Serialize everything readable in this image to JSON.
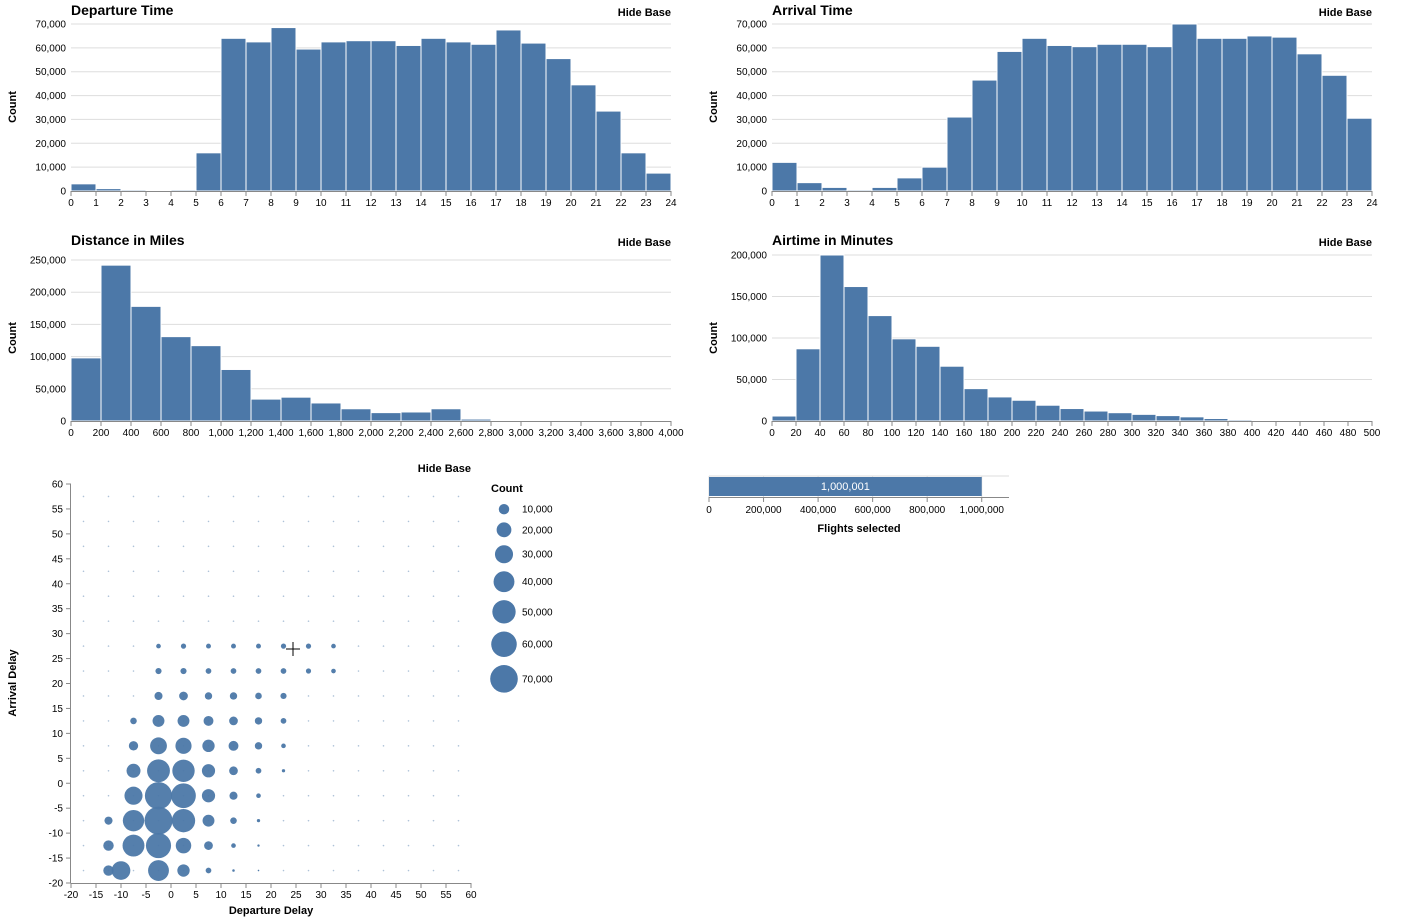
{
  "colors": {
    "bar": "#4c78a8",
    "grid": "#dddddd",
    "axis": "#888888"
  },
  "hide_base_label": "Hide Base",
  "chart_data": [
    {
      "id": "departure",
      "type": "bar",
      "title": "Departure Time",
      "ylabel": "Count",
      "xlabel": "",
      "x_domain": [
        0,
        24
      ],
      "x_ticks": [
        0,
        1,
        2,
        3,
        4,
        5,
        6,
        7,
        8,
        9,
        10,
        11,
        12,
        13,
        14,
        15,
        16,
        17,
        18,
        19,
        20,
        21,
        22,
        23,
        24
      ],
      "y_domain": [
        0,
        70000
      ],
      "y_ticks": [
        0,
        10000,
        20000,
        30000,
        40000,
        50000,
        60000,
        70000
      ],
      "bin_step": 1,
      "bins": [
        0,
        1,
        2,
        3,
        4,
        5,
        6,
        7,
        8,
        9,
        10,
        11,
        12,
        13,
        14,
        15,
        16,
        17,
        18,
        19,
        20,
        21,
        22,
        23
      ],
      "values": [
        3000,
        1000,
        500,
        300,
        500,
        16000,
        64000,
        62500,
        68500,
        59500,
        62500,
        63000,
        63000,
        61000,
        64000,
        62500,
        61500,
        67500,
        62000,
        55500,
        44500,
        33500,
        16000,
        7500
      ]
    },
    {
      "id": "arrival",
      "type": "bar",
      "title": "Arrival Time",
      "ylabel": "Count",
      "xlabel": "",
      "x_domain": [
        0,
        24
      ],
      "x_ticks": [
        0,
        1,
        2,
        3,
        4,
        5,
        6,
        7,
        8,
        9,
        10,
        11,
        12,
        13,
        14,
        15,
        16,
        17,
        18,
        19,
        20,
        21,
        22,
        23,
        24
      ],
      "y_domain": [
        0,
        70000
      ],
      "y_ticks": [
        0,
        10000,
        20000,
        30000,
        40000,
        50000,
        60000,
        70000
      ],
      "bin_step": 1,
      "bins": [
        0,
        1,
        2,
        3,
        4,
        5,
        6,
        7,
        8,
        9,
        10,
        11,
        12,
        13,
        14,
        15,
        16,
        17,
        18,
        19,
        20,
        21,
        22,
        23
      ],
      "values": [
        12000,
        3500,
        1500,
        500,
        1500,
        5500,
        10000,
        31000,
        46500,
        58500,
        64000,
        61000,
        60500,
        61500,
        61500,
        60500,
        70000,
        64000,
        64000,
        65000,
        64500,
        57500,
        48500,
        30500
      ]
    },
    {
      "id": "distance",
      "type": "bar",
      "title": "Distance in Miles",
      "ylabel": "Count",
      "xlabel": "",
      "x_domain": [
        0,
        4000
      ],
      "x_ticks": [
        0,
        200,
        400,
        600,
        800,
        1000,
        1200,
        1400,
        1600,
        1800,
        2000,
        2200,
        2400,
        2600,
        2800,
        3000,
        3200,
        3400,
        3600,
        3800,
        4000
      ],
      "y_domain": [
        0,
        250000
      ],
      "y_ticks": [
        0,
        50000,
        100000,
        150000,
        200000,
        250000
      ],
      "bin_step": 200,
      "bins": [
        0,
        200,
        400,
        600,
        800,
        1000,
        1200,
        1400,
        1600,
        1800,
        2000,
        2200,
        2400,
        2600,
        2800,
        3000,
        3200,
        3400,
        3600,
        3800
      ],
      "values": [
        98000,
        242000,
        178000,
        131000,
        117000,
        80000,
        34000,
        37000,
        28000,
        19000,
        13000,
        14000,
        19000,
        3000,
        1500,
        500,
        300,
        300,
        300,
        300
      ]
    },
    {
      "id": "airtime",
      "type": "bar",
      "title": "Airtime in Minutes",
      "ylabel": "Count",
      "xlabel": "",
      "x_domain": [
        0,
        500
      ],
      "x_ticks": [
        0,
        20,
        40,
        60,
        80,
        100,
        120,
        140,
        160,
        180,
        200,
        220,
        240,
        260,
        280,
        300,
        320,
        340,
        360,
        380,
        400,
        420,
        440,
        460,
        480,
        500
      ],
      "y_domain": [
        0,
        200000
      ],
      "y_ticks": [
        0,
        50000,
        100000,
        150000,
        200000
      ],
      "bin_step": 20,
      "bins": [
        0,
        20,
        40,
        60,
        80,
        100,
        120,
        140,
        160,
        180,
        200,
        220,
        240,
        260,
        280,
        300,
        320,
        340,
        360,
        380,
        400,
        420,
        440,
        460,
        480
      ],
      "values": [
        6000,
        87000,
        200000,
        162000,
        127000,
        99000,
        90000,
        66000,
        39000,
        29000,
        25000,
        19000,
        15000,
        12000,
        10000,
        8000,
        6500,
        5000,
        3000,
        1500,
        800,
        500,
        300,
        200,
        100
      ]
    },
    {
      "id": "delay",
      "type": "scatter",
      "title": "",
      "xlabel": "Departure Delay",
      "ylabel": "Arrival Delay",
      "x_domain": [
        -20,
        60
      ],
      "x_ticks": [
        -20,
        -15,
        -10,
        -5,
        0,
        5,
        10,
        15,
        20,
        25,
        30,
        35,
        40,
        45,
        50,
        55,
        60
      ],
      "y_domain": [
        -20,
        60
      ],
      "y_ticks": [
        -20,
        -15,
        -10,
        -5,
        0,
        5,
        10,
        15,
        20,
        25,
        30,
        35,
        40,
        45,
        50,
        55,
        60
      ],
      "size_legend_title": "Count",
      "size_legend": [
        10000,
        20000,
        30000,
        40000,
        50000,
        60000,
        70000
      ],
      "max_count": 72000,
      "points": [
        {
          "x": -12.5,
          "y": -17.5,
          "count": 10000
        },
        {
          "x": -10,
          "y": -17.5,
          "count": 32000
        },
        {
          "x": -2.5,
          "y": -17.5,
          "count": 40000
        },
        {
          "x": 2.5,
          "y": -17.5,
          "count": 14000
        },
        {
          "x": 7.5,
          "y": -17.5,
          "count": 3000
        },
        {
          "x": 12.5,
          "y": -17.5,
          "count": 600
        },
        {
          "x": 17.5,
          "y": -17.5,
          "count": 200
        },
        {
          "x": -12.5,
          "y": -12.5,
          "count": 10000
        },
        {
          "x": -7.5,
          "y": -12.5,
          "count": 44000
        },
        {
          "x": -2.5,
          "y": -12.5,
          "count": 58000
        },
        {
          "x": 2.5,
          "y": -12.5,
          "count": 22000
        },
        {
          "x": 7.5,
          "y": -12.5,
          "count": 7000
        },
        {
          "x": 12.5,
          "y": -12.5,
          "count": 2000
        },
        {
          "x": 17.5,
          "y": -12.5,
          "count": 500
        },
        {
          "x": -12.5,
          "y": -7.5,
          "count": 6000
        },
        {
          "x": -7.5,
          "y": -7.5,
          "count": 42000
        },
        {
          "x": -2.5,
          "y": -7.5,
          "count": 72000
        },
        {
          "x": 2.5,
          "y": -7.5,
          "count": 50000
        },
        {
          "x": 7.5,
          "y": -7.5,
          "count": 13000
        },
        {
          "x": 12.5,
          "y": -7.5,
          "count": 4000
        },
        {
          "x": 17.5,
          "y": -7.5,
          "count": 1000
        },
        {
          "x": -7.5,
          "y": -2.5,
          "count": 30000
        },
        {
          "x": -2.5,
          "y": -2.5,
          "count": 68000
        },
        {
          "x": 2.5,
          "y": -2.5,
          "count": 56000
        },
        {
          "x": 7.5,
          "y": -2.5,
          "count": 16000
        },
        {
          "x": 12.5,
          "y": -2.5,
          "count": 6000
        },
        {
          "x": 17.5,
          "y": -2.5,
          "count": 2000
        },
        {
          "x": -7.5,
          "y": 2.5,
          "count": 18000
        },
        {
          "x": -2.5,
          "y": 2.5,
          "count": 48000
        },
        {
          "x": 2.5,
          "y": 2.5,
          "count": 46000
        },
        {
          "x": 7.5,
          "y": 2.5,
          "count": 16000
        },
        {
          "x": 12.5,
          "y": 2.5,
          "count": 7000
        },
        {
          "x": 17.5,
          "y": 2.5,
          "count": 3000
        },
        {
          "x": 22.5,
          "y": 2.5,
          "count": 1000
        },
        {
          "x": -7.5,
          "y": 7.5,
          "count": 8000
        },
        {
          "x": -2.5,
          "y": 7.5,
          "count": 26000
        },
        {
          "x": 2.5,
          "y": 7.5,
          "count": 24000
        },
        {
          "x": 7.5,
          "y": 7.5,
          "count": 14000
        },
        {
          "x": 12.5,
          "y": 7.5,
          "count": 9000
        },
        {
          "x": 17.5,
          "y": 7.5,
          "count": 5000
        },
        {
          "x": 22.5,
          "y": 7.5,
          "count": 2000
        },
        {
          "x": -7.5,
          "y": 12.5,
          "count": 4000
        },
        {
          "x": -2.5,
          "y": 12.5,
          "count": 13000
        },
        {
          "x": 2.5,
          "y": 12.5,
          "count": 13000
        },
        {
          "x": 7.5,
          "y": 12.5,
          "count": 9000
        },
        {
          "x": 12.5,
          "y": 12.5,
          "count": 7000
        },
        {
          "x": 17.5,
          "y": 12.5,
          "count": 5000
        },
        {
          "x": 22.5,
          "y": 12.5,
          "count": 3000
        },
        {
          "x": -2.5,
          "y": 17.5,
          "count": 6000
        },
        {
          "x": 2.5,
          "y": 17.5,
          "count": 7000
        },
        {
          "x": 7.5,
          "y": 17.5,
          "count": 5000
        },
        {
          "x": 12.5,
          "y": 17.5,
          "count": 5000
        },
        {
          "x": 17.5,
          "y": 17.5,
          "count": 4000
        },
        {
          "x": 22.5,
          "y": 17.5,
          "count": 3500
        },
        {
          "x": -2.5,
          "y": 22.5,
          "count": 3500
        },
        {
          "x": 2.5,
          "y": 22.5,
          "count": 3500
        },
        {
          "x": 7.5,
          "y": 22.5,
          "count": 3000
        },
        {
          "x": 12.5,
          "y": 22.5,
          "count": 3000
        },
        {
          "x": 17.5,
          "y": 22.5,
          "count": 3000
        },
        {
          "x": 22.5,
          "y": 22.5,
          "count": 3000
        },
        {
          "x": 27.5,
          "y": 22.5,
          "count": 2500
        },
        {
          "x": 32.5,
          "y": 22.5,
          "count": 2000
        },
        {
          "x": -2.5,
          "y": 27.5,
          "count": 2000
        },
        {
          "x": 2.5,
          "y": 27.5,
          "count": 2500
        },
        {
          "x": 7.5,
          "y": 27.5,
          "count": 2200
        },
        {
          "x": 12.5,
          "y": 27.5,
          "count": 2200
        },
        {
          "x": 17.5,
          "y": 27.5,
          "count": 2200
        },
        {
          "x": 22.5,
          "y": 27.5,
          "count": 2500
        },
        {
          "x": 27.5,
          "y": 27.5,
          "count": 2500
        },
        {
          "x": 32.5,
          "y": 27.5,
          "count": 2000
        }
      ]
    },
    {
      "id": "flights",
      "type": "bar",
      "orientation": "horizontal",
      "title": "",
      "xlabel": "Flights selected",
      "x_domain": [
        0,
        1100000
      ],
      "x_ticks": [
        0,
        200000,
        400000,
        600000,
        800000,
        1000000
      ],
      "value": 1000001,
      "value_label": "1,000,001"
    }
  ]
}
